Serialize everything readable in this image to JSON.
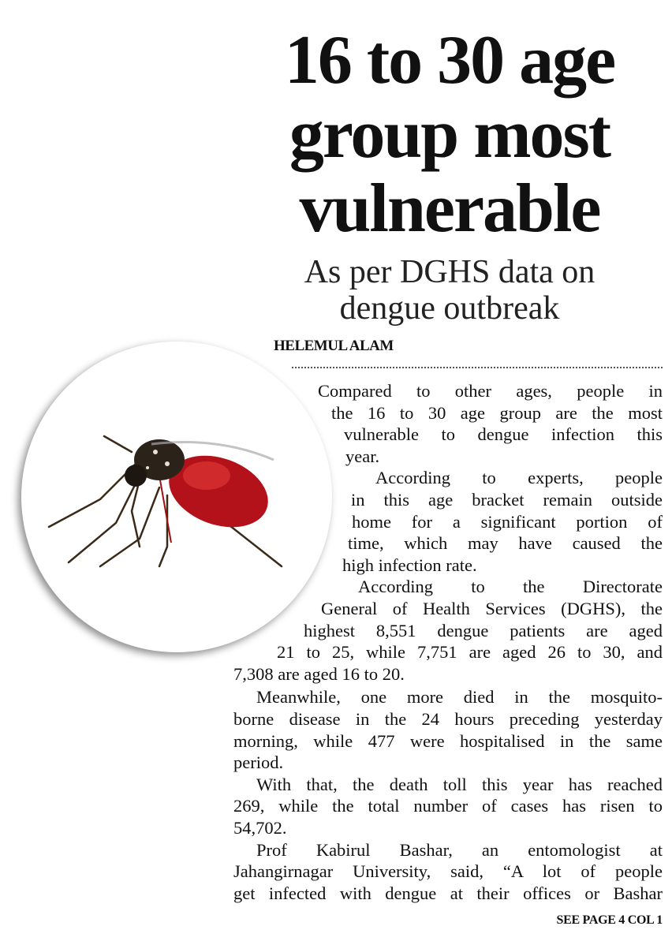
{
  "headline": [
    "16 to 30 age",
    "group most",
    "vulnerable"
  ],
  "subheadline": [
    "As per DGHS data on",
    "dengue outbreak"
  ],
  "byline": "HELEMUL ALAM",
  "photo": {
    "icon": "mosquito-photo"
  },
  "body_lines": [
    "Compared to other ages, people in",
    "the 16 to 30 age group are the most",
    "vulnerable to dengue infection this",
    "year.",
    "According to experts, people",
    "in this age bracket remain outside",
    "home for a significant portion of",
    "time, which may have caused the",
    "high infection rate.",
    "According to the Directorate",
    "General of Health Services (DGHS), the",
    "highest 8,551 dengue patients are aged",
    "21 to 25, while 7,751 are aged 26 to 30, and",
    "7,308 are aged 16 to 20.",
    "Meanwhile, one more died in the mosquito-",
    "borne disease in the 24 hours preceding yesterday",
    "morning, while 477 were hospitalised in the same",
    "period.",
    "With that, the death toll this year has reached",
    "269, while the total number of cases has risen to",
    "54,702.",
    "Prof Kabirul Bashar, an entomologist at",
    "Jahangirnagar University, said, “A lot of people",
    "get infected with dengue at their offices or Bashar"
  ],
  "jump": "SEE PAGE 4 COL 1"
}
